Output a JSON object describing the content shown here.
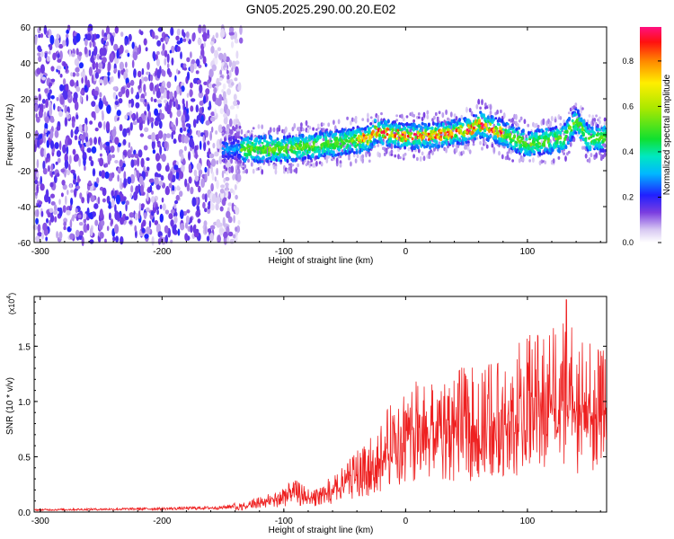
{
  "page_title": "GN05.2025.290.00.20.E02",
  "chart_data": [
    {
      "type": "heatmap",
      "title": "GN05.2025.290.00.20.E02",
      "xlabel": "Height of straight line (km)",
      "ylabel": "Frequency (Hz)",
      "xlim": [
        -305,
        165
      ],
      "ylim": [
        -60,
        60
      ],
      "x_ticks": [
        -300,
        -200,
        -100,
        0,
        100
      ],
      "y_ticks": [
        -60,
        -40,
        -20,
        0,
        20,
        40,
        60
      ],
      "x_tick_labels": [
        "-300",
        "-200",
        "-100",
        "0",
        "100"
      ],
      "y_tick_labels": [
        "-60",
        "-40",
        "-20",
        "0",
        "20",
        "40",
        "60"
      ],
      "colorbar": {
        "label": "Normalized spectral amplitude",
        "range": [
          0.0,
          0.95
        ],
        "ticks": [
          0.0,
          0.2,
          0.4,
          0.6,
          0.8
        ],
        "tick_labels": [
          "0.0",
          "0.2",
          "0.4",
          "0.6",
          "0.8"
        ]
      },
      "noise_region_km": [
        -305,
        -135
      ],
      "signal_band": {
        "x_start_km": -150,
        "ridge_points_km_hz": [
          [
            -150,
            -8
          ],
          [
            -100,
            -8
          ],
          [
            -50,
            -4
          ],
          [
            -30,
            -2
          ],
          [
            -25,
            2
          ],
          [
            0,
            -1
          ],
          [
            30,
            0
          ],
          [
            55,
            3
          ],
          [
            60,
            6
          ],
          [
            75,
            2
          ],
          [
            100,
            -5
          ],
          [
            130,
            -2
          ],
          [
            140,
            8
          ],
          [
            150,
            -2
          ],
          [
            165,
            -2
          ]
        ]
      }
    },
    {
      "type": "line",
      "xlabel": "Height of straight line (km)",
      "ylabel": "SNR (10 * v/v)",
      "scale_label": "(x10",
      "scale_exponent": "4",
      "scale_close": ")",
      "xlim": [
        -305,
        165
      ],
      "ylim": [
        0,
        1.95
      ],
      "x_ticks": [
        -300,
        -200,
        -100,
        0,
        100
      ],
      "y_ticks": [
        0.0,
        0.5,
        1.0,
        1.5
      ],
      "x_tick_labels": [
        "-300",
        "-200",
        "-100",
        "0",
        "100"
      ],
      "y_tick_labels": [
        "0.0",
        "0.5",
        "1.0",
        "1.5"
      ],
      "series": [
        {
          "name": "SNR",
          "color": "#ee2020",
          "envelope_km_value": [
            [
              -305,
              0.02
            ],
            [
              -200,
              0.03
            ],
            [
              -150,
              0.04
            ],
            [
              -130,
              0.08
            ],
            [
              -110,
              0.15
            ],
            [
              -100,
              0.2
            ],
            [
              -90,
              0.24
            ],
            [
              -80,
              0.18
            ],
            [
              -70,
              0.2
            ],
            [
              -60,
              0.28
            ],
            [
              -50,
              0.35
            ],
            [
              -40,
              0.48
            ],
            [
              -30,
              0.55
            ],
            [
              -20,
              0.7
            ],
            [
              -10,
              0.85
            ],
            [
              0,
              0.95
            ],
            [
              10,
              1.0
            ],
            [
              30,
              1.05
            ],
            [
              50,
              1.1
            ],
            [
              60,
              1.1
            ],
            [
              75,
              1.15
            ],
            [
              90,
              1.25
            ],
            [
              100,
              1.35
            ],
            [
              110,
              1.35
            ],
            [
              120,
              1.45
            ],
            [
              130,
              1.6
            ],
            [
              140,
              1.4
            ],
            [
              150,
              1.3
            ],
            [
              165,
              1.2
            ]
          ],
          "peak_km_value": [
            132,
            1.92
          ]
        }
      ]
    }
  ]
}
